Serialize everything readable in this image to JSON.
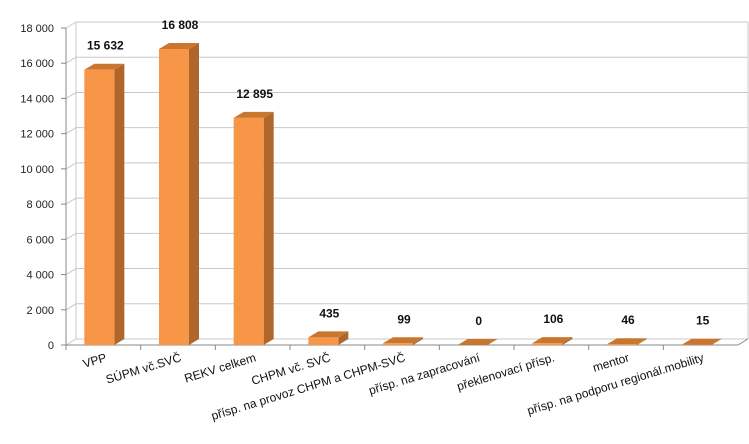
{
  "chart_data": {
    "type": "bar",
    "style": "3d-column",
    "title": "",
    "xlabel": "",
    "ylabel": "",
    "ylim": [
      0,
      18000
    ],
    "yticks": [
      "0",
      "2 000",
      "4 000",
      "6 000",
      "8 000",
      "10 000",
      "12 000",
      "14 000",
      "16 000",
      "18 000"
    ],
    "grid": true,
    "legend": "none",
    "categories": [
      "VPP",
      "SÚPM vč.SVČ",
      "REKV celkem",
      "CHPM vč. SVČ",
      "přísp. na provoz CHPM a CHPM-SVČ",
      "přísp. na zapracování",
      "překlenovací přísp.",
      "mentor",
      "přísp. na podporu regionál.mobility"
    ],
    "values": [
      15632,
      16808,
      12895,
      435,
      99,
      0,
      106,
      46,
      15
    ],
    "data_labels": [
      "15 632",
      "16 808",
      "12 895",
      "435",
      "99",
      "0",
      "106",
      "46",
      "15"
    ],
    "colors": {
      "front": "#f79646",
      "side": "#b0662a",
      "top": "#c9772f",
      "grid": "#c8c8c8",
      "axis": "#888888"
    }
  }
}
